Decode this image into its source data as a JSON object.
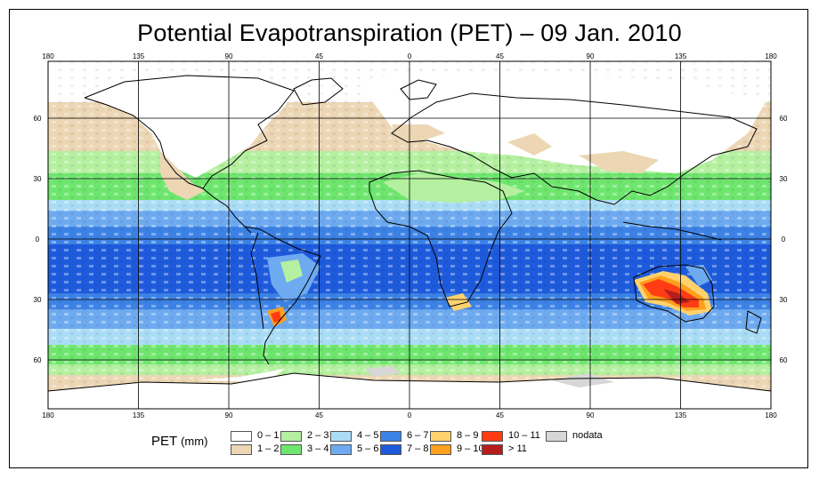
{
  "title": "Potential Evapotranspiration (PET) – 09 Jan. 2010",
  "lon_ticks": [
    "180",
    "135",
    "90",
    "45",
    "0",
    "45",
    "90",
    "135",
    "180"
  ],
  "lat_ticks": [
    "60",
    "30",
    "0",
    "30",
    "60"
  ],
  "legend": {
    "title": "PET",
    "unit": "(mm)",
    "items": [
      {
        "label": "0 – 1",
        "color": "#ffffff"
      },
      {
        "label": "1 – 2",
        "color": "#ecd6b4"
      },
      {
        "label": "2 – 3",
        "color": "#b4f0a0"
      },
      {
        "label": "3 – 4",
        "color": "#6ee66e"
      },
      {
        "label": "4 – 5",
        "color": "#aadcf5"
      },
      {
        "label": "5 – 6",
        "color": "#6eaaf0"
      },
      {
        "label": "6 – 7",
        "color": "#3c82e6"
      },
      {
        "label": "7 – 8",
        "color": "#1e5adc"
      },
      {
        "label": "8 – 9",
        "color": "#ffd26e"
      },
      {
        "label": "9 – 10",
        "color": "#ffa01e"
      },
      {
        "label": "10 – 11",
        "color": "#ff3c14"
      },
      {
        "label": "> 11",
        "color": "#b41e1e"
      },
      {
        "label": "nodata",
        "color": "#d7d7d7"
      }
    ]
  }
}
